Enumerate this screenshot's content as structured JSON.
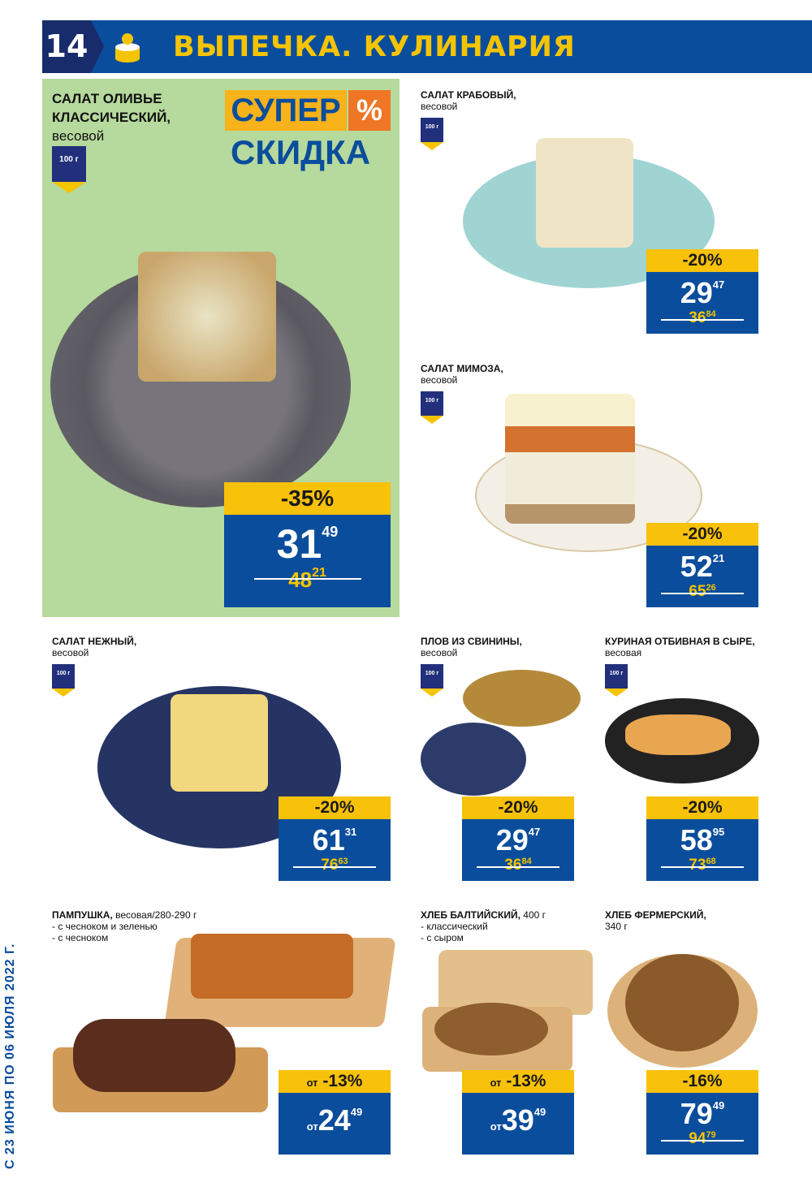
{
  "header": {
    "page_number": "14",
    "title": "ВЫПЕЧКА. КУЛИНАРИЯ",
    "logo_icon": "cake-icon"
  },
  "colors": {
    "brand_blue": "#0a4d9c",
    "yellow": "#f8c10a",
    "green_panel": "#b6d99d"
  },
  "promo": {
    "super": "СУПЕР",
    "pct": "%",
    "skidka": "СКИДКА"
  },
  "validity": "С 23 ИЮНЯ ПО 06 ИЮЛЯ 2022 Г.",
  "products": [
    {
      "name": "САЛАТ ОЛИВЬЕ КЛАССИЧЕСКИЙ,",
      "sub": "весовой",
      "badge": "100 г",
      "discount": "-35%",
      "price_int": "31",
      "price_dec": "49",
      "old_int": "48",
      "old_dec": "21"
    },
    {
      "name": "САЛАТ КРАБОВЫЙ,",
      "sub": "весовой",
      "badge": "100 г",
      "discount": "-20%",
      "price_int": "29",
      "price_dec": "47",
      "old_int": "36",
      "old_dec": "84"
    },
    {
      "name": "САЛАТ МИМОЗА,",
      "sub": "весовой",
      "badge": "100 г",
      "discount": "-20%",
      "price_int": "52",
      "price_dec": "21",
      "old_int": "65",
      "old_dec": "26"
    },
    {
      "name": "САЛАТ НЕЖНЫЙ,",
      "sub": "весовой",
      "badge": "100 г",
      "discount": "-20%",
      "price_int": "61",
      "price_dec": "31",
      "old_int": "76",
      "old_dec": "63"
    },
    {
      "name": "ПЛОВ ИЗ СВИНИНЫ,",
      "sub": "весовой",
      "badge": "100 г",
      "discount": "-20%",
      "price_int": "29",
      "price_dec": "47",
      "old_int": "36",
      "old_dec": "84"
    },
    {
      "name": "КУРИНАЯ ОТБИВНАЯ В СЫРЕ,",
      "sub": "весовая",
      "badge": "100 г",
      "discount": "-20%",
      "price_int": "58",
      "price_dec": "95",
      "old_int": "73",
      "old_dec": "68"
    },
    {
      "name": "ПАМПУШКА,",
      "sub": "весовая/280-290 г",
      "lines": [
        "- с чесноком и зеленью",
        "- с чесноком"
      ],
      "from": "от",
      "discount": "-13%",
      "price_int": "24",
      "price_dec": "49"
    },
    {
      "name": "ХЛЕБ БАЛТИЙСКИЙ,",
      "sub": "400 г",
      "lines": [
        "- классический",
        "- с сыром"
      ],
      "from": "от",
      "discount": "-13%",
      "price_int": "39",
      "price_dec": "49"
    },
    {
      "name": "ХЛЕБ ФЕРМЕРСКИЙ,",
      "sub": "340 г",
      "discount": "-16%",
      "price_int": "79",
      "price_dec": "49",
      "old_int": "94",
      "old_dec": "79"
    }
  ]
}
